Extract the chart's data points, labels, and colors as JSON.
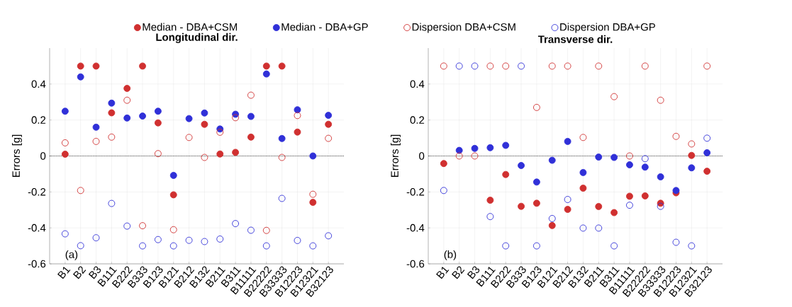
{
  "chart_data": [
    {
      "type": "scatter",
      "title": "Longitudinal dir.",
      "ylabel": "Errors [g]",
      "annotations": [
        "(a)"
      ],
      "categories": [
        "B1",
        "B2",
        "B3",
        "B111",
        "B222",
        "B333",
        "B123",
        "B121",
        "B212",
        "B132",
        "B211",
        "B311",
        "B11111",
        "B22222",
        "B33333",
        "B12223",
        "B12321",
        "B32123"
      ],
      "ylim": [
        -0.6,
        0.6
      ],
      "yticks": [
        -0.6,
        -0.4,
        -0.2,
        0,
        0.2,
        0.4
      ],
      "grid": true,
      "legend": "top",
      "ref_lines": [
        {
          "axis": "y",
          "value": 0,
          "color": "#000000",
          "line_style": "dotted"
        }
      ],
      "series": [
        {
          "name": "Median - DBA+CSM",
          "color": "#d03030",
          "marker": "circle",
          "values": [
            0.01,
            0.5,
            0.5,
            0.24,
            0.376,
            0.5,
            0.184,
            -0.216,
            null,
            0.176,
            0.011,
            0.02,
            0.105,
            0.5,
            0.5,
            0.133,
            -0.258,
            0.176
          ]
        },
        {
          "name": "Median - DBA+GP",
          "color": "#3030d8",
          "marker": "circle",
          "values": [
            0.249,
            0.44,
            0.16,
            0.294,
            0.211,
            0.222,
            0.249,
            -0.108,
            0.208,
            0.239,
            0.15,
            0.232,
            0.22,
            0.456,
            0.097,
            0.257,
            0,
            0.226
          ]
        },
        {
          "name": "Dispersion DBA+CSM",
          "color": "#d03030",
          "marker": "circle-open",
          "values": [
            0.073,
            -0.192,
            0.081,
            0.105,
            0.31,
            -0.388,
            0.013,
            -0.41,
            0.103,
            -0.008,
            0.132,
            0.213,
            0.338,
            -0.414,
            -0.008,
            0.225,
            -0.213,
            0.098
          ]
        },
        {
          "name": "Dispersion DBA+GP",
          "color": "#3030d8",
          "marker": "circle-open",
          "values": [
            -0.433,
            -0.499,
            -0.455,
            -0.264,
            -0.39,
            -0.5,
            -0.465,
            -0.5,
            -0.469,
            -0.476,
            -0.462,
            -0.376,
            -0.413,
            -0.5,
            -0.236,
            -0.47,
            -0.5,
            -0.444
          ]
        }
      ]
    },
    {
      "type": "scatter",
      "title": "Transverse dir.",
      "ylabel": "Errors [g]",
      "annotations": [
        "(b)"
      ],
      "categories": [
        "B1",
        "B2",
        "B3",
        "B111",
        "B222",
        "B333",
        "B123",
        "B121",
        "B212",
        "B132",
        "B211",
        "B311",
        "B11111",
        "B22222",
        "B33333",
        "B12223",
        "B12321",
        "B32123"
      ],
      "ylim": [
        -0.6,
        0.6
      ],
      "yticks": [
        -0.6,
        -0.4,
        -0.2,
        0,
        0.2,
        0.4
      ],
      "grid": true,
      "ref_lines": [
        {
          "axis": "y",
          "value": 0,
          "color": "#000000",
          "line_style": "dotted"
        }
      ],
      "series": [
        {
          "color": "#d03030",
          "marker": "circle",
          "values": [
            -0.042,
            null,
            null,
            -0.246,
            -0.103,
            -0.28,
            -0.263,
            -0.387,
            -0.297,
            -0.179,
            -0.281,
            -0.315,
            -0.224,
            -0.222,
            -0.263,
            -0.205,
            0.003,
            -0.085
          ]
        },
        {
          "color": "#3030d8",
          "marker": "circle",
          "values": [
            null,
            0.031,
            0.042,
            0.046,
            0.059,
            -0.053,
            -0.145,
            -0.024,
            0.081,
            -0.092,
            -0.006,
            -0.008,
            -0.049,
            -0.062,
            -0.116,
            -0.192,
            -0.066,
            0.018
          ]
        },
        {
          "color": "#d03030",
          "marker": "circle-open",
          "values": [
            0.5,
            0,
            0,
            0.5,
            0.5,
            null,
            0.27,
            0.5,
            0.5,
            0.103,
            0.5,
            0.33,
            0,
            0.5,
            0.31,
            0.109,
            0.067,
            0.5
          ]
        },
        {
          "color": "#3030d8",
          "marker": "circle-open",
          "values": [
            -0.192,
            0.5,
            0.5,
            -0.337,
            -0.5,
            0.5,
            -0.5,
            -0.348,
            -0.242,
            -0.401,
            -0.401,
            -0.5,
            -0.274,
            -0.015,
            -0.28,
            -0.48,
            -0.5,
            0.099
          ]
        }
      ]
    }
  ]
}
